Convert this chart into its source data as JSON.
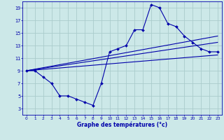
{
  "xlabel": "Graphe des températures (°c)",
  "bg_color": "#cce8e8",
  "grid_color": "#aacccc",
  "line_color": "#0000aa",
  "xlim": [
    -0.5,
    23.5
  ],
  "ylim": [
    2,
    20
  ],
  "xticks": [
    0,
    1,
    2,
    3,
    4,
    5,
    6,
    7,
    8,
    9,
    10,
    11,
    12,
    13,
    14,
    15,
    16,
    17,
    18,
    19,
    20,
    21,
    22,
    23
  ],
  "yticks": [
    3,
    5,
    7,
    9,
    11,
    13,
    15,
    17,
    19
  ],
  "main_x": [
    0,
    1,
    2,
    3,
    4,
    5,
    6,
    7,
    8,
    9,
    10,
    11,
    12,
    13,
    14,
    15,
    16,
    17,
    18,
    19,
    20,
    21,
    22,
    23
  ],
  "main_y": [
    9,
    9,
    8,
    7,
    5,
    5,
    4.5,
    4,
    3.5,
    7,
    12,
    12.5,
    13,
    15.5,
    15.5,
    19.5,
    19,
    16.5,
    16,
    14.5,
    13.5,
    12.5,
    12,
    12
  ],
  "trend1_x": [
    0,
    23
  ],
  "trend1_y": [
    9.0,
    14.5
  ],
  "trend2_x": [
    0,
    23
  ],
  "trend2_y": [
    9.0,
    13.5
  ],
  "trend3_x": [
    0,
    23
  ],
  "trend3_y": [
    9.0,
    11.5
  ]
}
